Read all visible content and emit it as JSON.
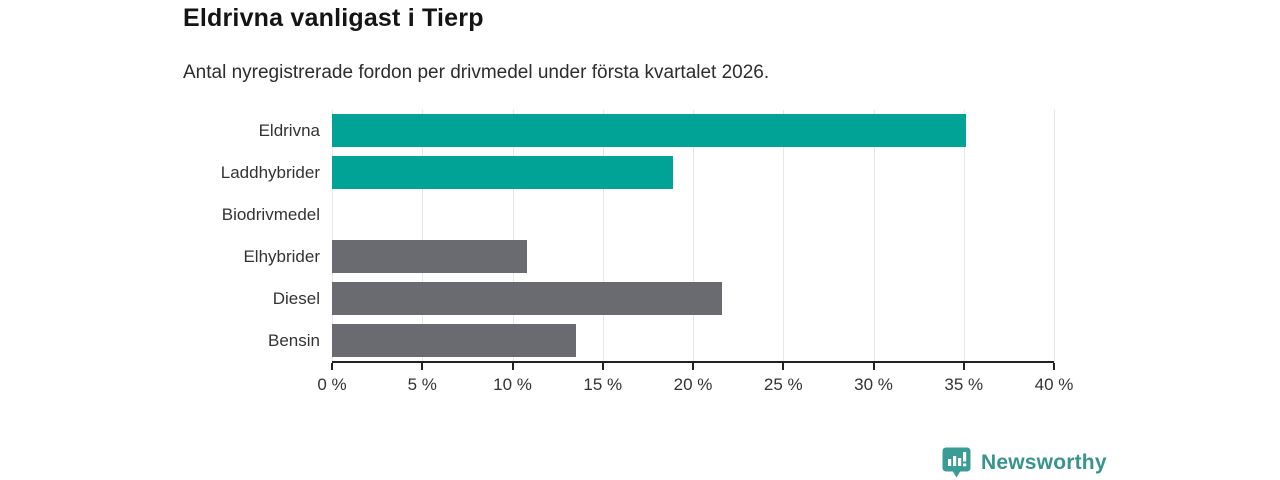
{
  "header": {
    "title": "Eldrivna vanligast i Tierp",
    "subtitle": "Antal nyregistrerade fordon per drivmedel under första kvartalet 2026."
  },
  "chart_data": {
    "type": "bar",
    "orientation": "horizontal",
    "title": "Eldrivna vanligast i Tierp",
    "subtitle": "Antal nyregistrerade fordon per drivmedel under första kvartalet 2026.",
    "categories": [
      "Eldrivna",
      "Laddhybrider",
      "Biodrivmedel",
      "Elhybrider",
      "Diesel",
      "Bensin"
    ],
    "values": [
      35.1,
      18.9,
      0,
      10.8,
      21.6,
      13.5
    ],
    "unit": "%",
    "bar_colors": [
      "#00a396",
      "#00a396",
      "#6a6a71",
      "#6a6a71",
      "#6a6a71",
      "#6a6a71"
    ],
    "xlim": [
      0,
      40
    ],
    "xticks": [
      0,
      5,
      10,
      15,
      20,
      25,
      30,
      35,
      40
    ],
    "xtick_labels": [
      "0 %",
      "5 %",
      "10 %",
      "15 %",
      "20 %",
      "25 %",
      "30 %",
      "35 %",
      "40 %"
    ],
    "grid": "vertical-gridlines-on",
    "legend": "none",
    "colors": {
      "highlight": "#00a396",
      "default": "#6a6a71",
      "gridline": "#e7e7e7",
      "axis": "#222222",
      "label": "#333333"
    }
  },
  "footer": {
    "brand": "Newsworthy",
    "logo_icon": "newsworthy-speech-bubble-bar-chart-icon",
    "brand_color": "#38938d",
    "icon_color": "#3a9c94"
  }
}
